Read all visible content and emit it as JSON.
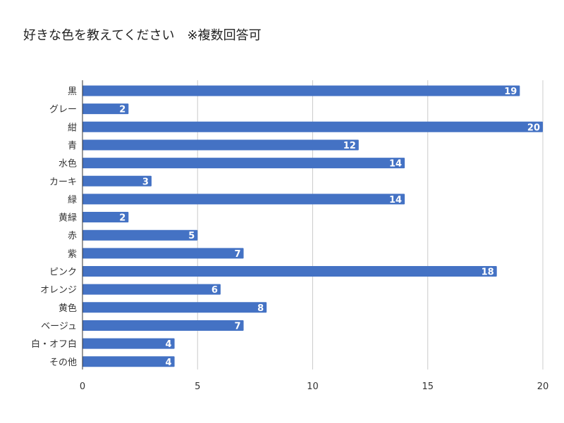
{
  "title": "好きな色を教えてください　※複数回答可",
  "chart_data": {
    "type": "bar",
    "orientation": "horizontal",
    "title": "好きな色を教えてください　※複数回答可",
    "categories": [
      "黒",
      "グレー",
      "紺",
      "青",
      "水色",
      "カーキ",
      "緑",
      "黄緑",
      "赤",
      "紫",
      "ピンク",
      "オレンジ",
      "黄色",
      "ベージュ",
      "白・オフ白",
      "その他"
    ],
    "values": [
      19,
      2,
      20,
      12,
      14,
      3,
      14,
      2,
      5,
      7,
      18,
      6,
      8,
      7,
      4,
      4
    ],
    "xlim": [
      0,
      20
    ],
    "xticks": [
      0,
      5,
      10,
      15,
      20
    ],
    "grid": true,
    "data_labels": true,
    "bar_color": "#4472c4",
    "grid_color": "#cccccc",
    "label_color": "#ffffff"
  }
}
